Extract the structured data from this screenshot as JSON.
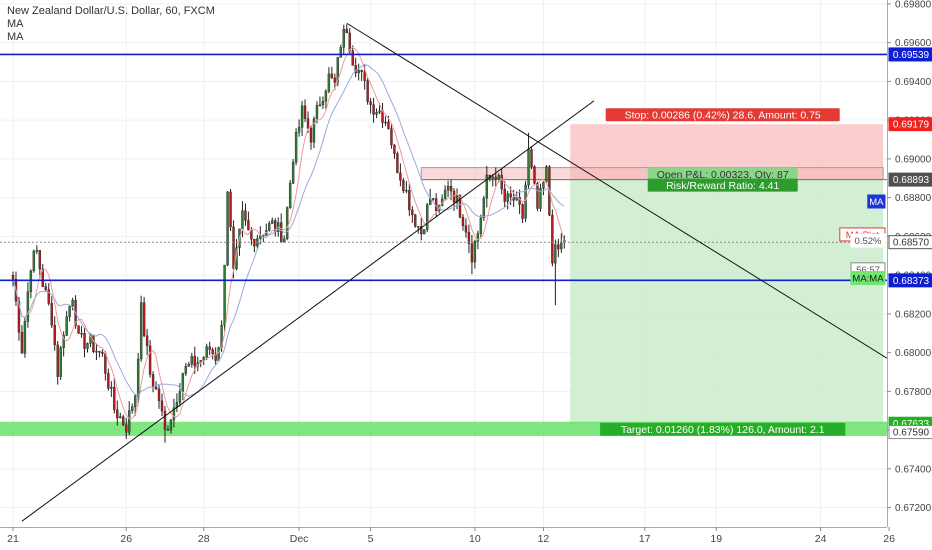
{
  "chart_data": {
    "type": "candlestick",
    "title": "New Zealand Dollar/U.S. Dollar, 60, FXCM",
    "indicators": [
      "MA",
      "MA"
    ],
    "ylim": [
      0.671,
      0.6982
    ],
    "y_ticks": [
      "0.69800",
      "0.69600",
      "0.69400",
      "0.69200",
      "0.69000",
      "0.68800",
      "0.68600",
      "0.68400",
      "0.68200",
      "0.68000",
      "0.67800",
      "0.67600",
      "0.67400",
      "0.67200"
    ],
    "x_ticks": [
      {
        "label": "21",
        "bar": 0
      },
      {
        "label": "26",
        "bar": 38
      },
      {
        "label": "28",
        "bar": 64
      },
      {
        "label": "Dec",
        "bar": 96
      },
      {
        "label": "5",
        "bar": 120
      },
      {
        "label": "10",
        "bar": 155
      },
      {
        "label": "12",
        "bar": 178
      },
      {
        "label": "17",
        "bar": 212
      },
      {
        "label": "19",
        "bar": 236
      },
      {
        "label": "24",
        "bar": 271
      },
      {
        "label": "26",
        "bar": 294
      }
    ],
    "bar_count_visible": 296,
    "anchors": [
      [
        0,
        0.6838
      ],
      [
        3,
        0.6802
      ],
      [
        6,
        0.6846
      ],
      [
        8,
        0.6852
      ],
      [
        10,
        0.6836
      ],
      [
        13,
        0.6818
      ],
      [
        15,
        0.679
      ],
      [
        17,
        0.6812
      ],
      [
        20,
        0.683
      ],
      [
        22,
        0.6806
      ],
      [
        26,
        0.6805
      ],
      [
        30,
        0.6798
      ],
      [
        34,
        0.6771
      ],
      [
        38,
        0.6762
      ],
      [
        41,
        0.6779
      ],
      [
        43,
        0.6822
      ],
      [
        46,
        0.6789
      ],
      [
        49,
        0.6776
      ],
      [
        51,
        0.6759
      ],
      [
        54,
        0.6772
      ],
      [
        57,
        0.679
      ],
      [
        60,
        0.6794
      ],
      [
        63,
        0.6796
      ],
      [
        66,
        0.6802
      ],
      [
        68,
        0.6798
      ],
      [
        70,
        0.6812
      ],
      [
        72,
        0.6885
      ],
      [
        74,
        0.684
      ],
      [
        77,
        0.687
      ],
      [
        80,
        0.6858
      ],
      [
        84,
        0.6863
      ],
      [
        87,
        0.6866
      ],
      [
        91,
        0.686
      ],
      [
        94,
        0.6902
      ],
      [
        97,
        0.6924
      ],
      [
        100,
        0.6912
      ],
      [
        103,
        0.693
      ],
      [
        106,
        0.6942
      ],
      [
        108,
        0.6938
      ],
      [
        110,
        0.696
      ],
      [
        112,
        0.6968
      ],
      [
        114,
        0.6952
      ],
      [
        117,
        0.6942
      ],
      [
        120,
        0.6928
      ],
      [
        123,
        0.6925
      ],
      [
        126,
        0.6918
      ],
      [
        128,
        0.69
      ],
      [
        131,
        0.6888
      ],
      [
        134,
        0.6872
      ],
      [
        137,
        0.6862
      ],
      [
        140,
        0.688
      ],
      [
        143,
        0.6872
      ],
      [
        146,
        0.6888
      ],
      [
        149,
        0.6878
      ],
      [
        152,
        0.6865
      ],
      [
        154,
        0.6851
      ],
      [
        156,
        0.6862
      ],
      [
        159,
        0.6888
      ],
      [
        162,
        0.6893
      ],
      [
        165,
        0.6878
      ],
      [
        168,
        0.6879
      ],
      [
        171,
        0.687
      ],
      [
        173,
        0.6903
      ],
      [
        176,
        0.6874
      ],
      [
        179,
        0.6893
      ],
      [
        181,
        0.685
      ],
      [
        183,
        0.6853
      ],
      [
        185,
        0.6858
      ]
    ],
    "wick_events": [
      {
        "bar": 38,
        "low": 0.67555
      },
      {
        "bar": 51,
        "low": 0.67535
      },
      {
        "bar": 112,
        "high": 0.69695
      },
      {
        "bar": 154,
        "low": 0.68405
      },
      {
        "bar": 173,
        "high": 0.69135
      },
      {
        "bar": 182,
        "low": 0.68245
      }
    ],
    "ma_fast_label": "MA",
    "ma_slow_label": "MA",
    "horizontal_lines": [
      {
        "price": 0.69539,
        "label": "0.69539",
        "color": "#0d1fd1"
      },
      {
        "price": 0.68373,
        "label": "0.68373",
        "color": "#0d1fd1"
      }
    ],
    "support_zone": {
      "from": 0.6759,
      "to": 0.67633,
      "color": "#55dd55"
    },
    "trendlines": [
      {
        "start": [
          3,
          0.6713
        ],
        "end": [
          195,
          0.693
        ]
      },
      {
        "start": [
          112,
          0.697
        ],
        "end": [
          295,
          0.67955
        ]
      }
    ],
    "position": {
      "entry": 0.68893,
      "stop": 0.69179,
      "target": 0.67633,
      "start_bar": 187,
      "end_bar": 292,
      "stop_label": "Stop: 0.00286 (0.42%) 28.6, Amount: 0.75",
      "target_label": "Target: 0.01260 (1.83%) 126.0, Amount: 2.1",
      "pnl_label": "Open P&L: 0.00323, Qty: 87",
      "rr_label": "Risk/Reward Ratio: 4.41"
    },
    "gray_band": {
      "from": 0.68893,
      "to": 0.68955,
      "start_bar": 137,
      "end_bar": 292
    },
    "current_price_line": 0.6857,
    "price_labels": [
      {
        "text": "0.69179",
        "price": 0.69179,
        "bg": "#ef2121",
        "fg": "#ffffff"
      },
      {
        "text": "0.68893",
        "price": 0.68893,
        "bg": "#505050",
        "fg": "#ffffff"
      },
      {
        "text": "0.68570",
        "price": 0.6857,
        "bg": "#ffffff",
        "fg": "#333333",
        "border": "#555555"
      },
      {
        "text": "0.68373",
        "price": 0.68373,
        "bg": "#0d1fd1",
        "fg": "#ffffff"
      },
      {
        "text": "0.67633",
        "price": 0.67633,
        "bg": "#27ae27",
        "fg": "#ffffff"
      },
      {
        "text": "0.67590",
        "price": 0.6759,
        "bg": "#ffffff",
        "fg": "#333333",
        "border": "#888888"
      },
      {
        "text": "0.69539",
        "price": 0.69539,
        "bg": "#0d1fd1",
        "fg": "#ffffff"
      }
    ],
    "side_tags": [
      {
        "text": "MA",
        "price": 0.6878,
        "bg": "#1c36d6",
        "fg": "#ffffff"
      },
      {
        "text": "MA:Plot",
        "price": 0.6861,
        "bg": "#ffffff",
        "fg": "#e53935",
        "border": "#e53935"
      },
      {
        "text": "0.52%",
        "price": 0.68578,
        "bg": "#ffffff",
        "fg": "#555555"
      },
      {
        "text": "56:57",
        "price": 0.6843,
        "bg": "#ffffff",
        "fg": "#555555",
        "border": "#888888"
      },
      {
        "text": "MA:MA",
        "price": 0.68385,
        "bg": "#6fe66f",
        "fg": "#1a1a1a"
      }
    ],
    "colors": {
      "up": "#2e7d32",
      "down": "#b71c1c",
      "ma_fast": "#ef9a9a",
      "ma_slow": "#9fa8da",
      "grid": "#eef0f3"
    },
    "grid": true
  }
}
